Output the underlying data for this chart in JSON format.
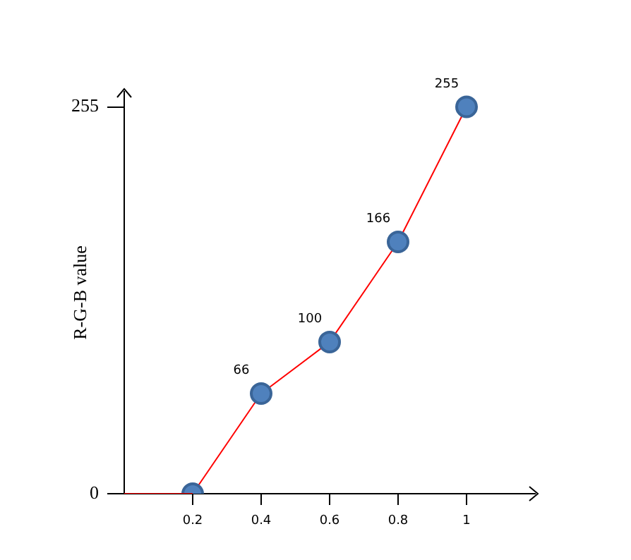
{
  "chart_data": {
    "type": "line",
    "ylabel": "R-G-B value",
    "series": [
      {
        "color": "#ff0000",
        "x": [
          0,
          0.2
        ],
        "values": [
          0,
          0
        ],
        "marker": "none"
      },
      {
        "color": "#ff0000",
        "colors": [
          "#4f81bd",
          "#4f81bd",
          "#4f81bd",
          "#4f81bd",
          "#4f81bd"
        ],
        "x": [
          0.2,
          0.4,
          0.6,
          0.8,
          1
        ],
        "values": [
          0,
          66,
          100,
          166,
          255
        ],
        "value_labels": [
          null,
          "66",
          "100",
          "166",
          "255"
        ]
      }
    ],
    "xlim": [
      0,
      1.2
    ],
    "xticks": [
      0.2,
      0.4,
      0.6,
      0.8,
      1
    ],
    "ylim": [
      0,
      265
    ],
    "yticks": [
      0,
      255
    ],
    "grid": false,
    "legend": false,
    "marker": "circle",
    "line_style": "solid"
  }
}
